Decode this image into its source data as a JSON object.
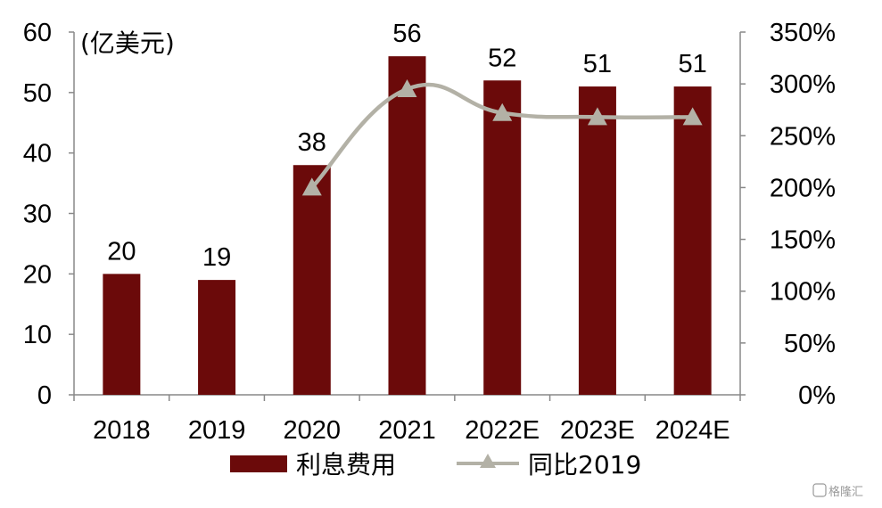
{
  "chart_data": {
    "type": "bar",
    "categories": [
      "2018",
      "2019",
      "2020",
      "2021",
      "2022E",
      "2023E",
      "2024E"
    ],
    "series": [
      {
        "name": "利息费用",
        "type": "bar",
        "axis": "left",
        "color": "#6B0A0A",
        "values": [
          20,
          19,
          38,
          56,
          52,
          51,
          51
        ],
        "labels": [
          "20",
          "19",
          "38",
          "56",
          "52",
          "51",
          "51"
        ]
      },
      {
        "name": "同比2019",
        "type": "line",
        "axis": "right",
        "color": "#B3B1A6",
        "marker": "triangle",
        "values": [
          null,
          null,
          200,
          295,
          272,
          268,
          268
        ]
      }
    ],
    "unit_label": "(亿美元)",
    "y_left": {
      "lim": [
        0,
        60
      ],
      "ticks": [
        "0",
        "10",
        "20",
        "30",
        "40",
        "50",
        "60"
      ]
    },
    "y_right": {
      "lim": [
        0,
        350
      ],
      "ticks": [
        "0%",
        "50%",
        "100%",
        "150%",
        "200%",
        "250%",
        "300%",
        "350%"
      ]
    },
    "grid": false,
    "legend_position": "bottom"
  },
  "watermark": "格隆汇"
}
